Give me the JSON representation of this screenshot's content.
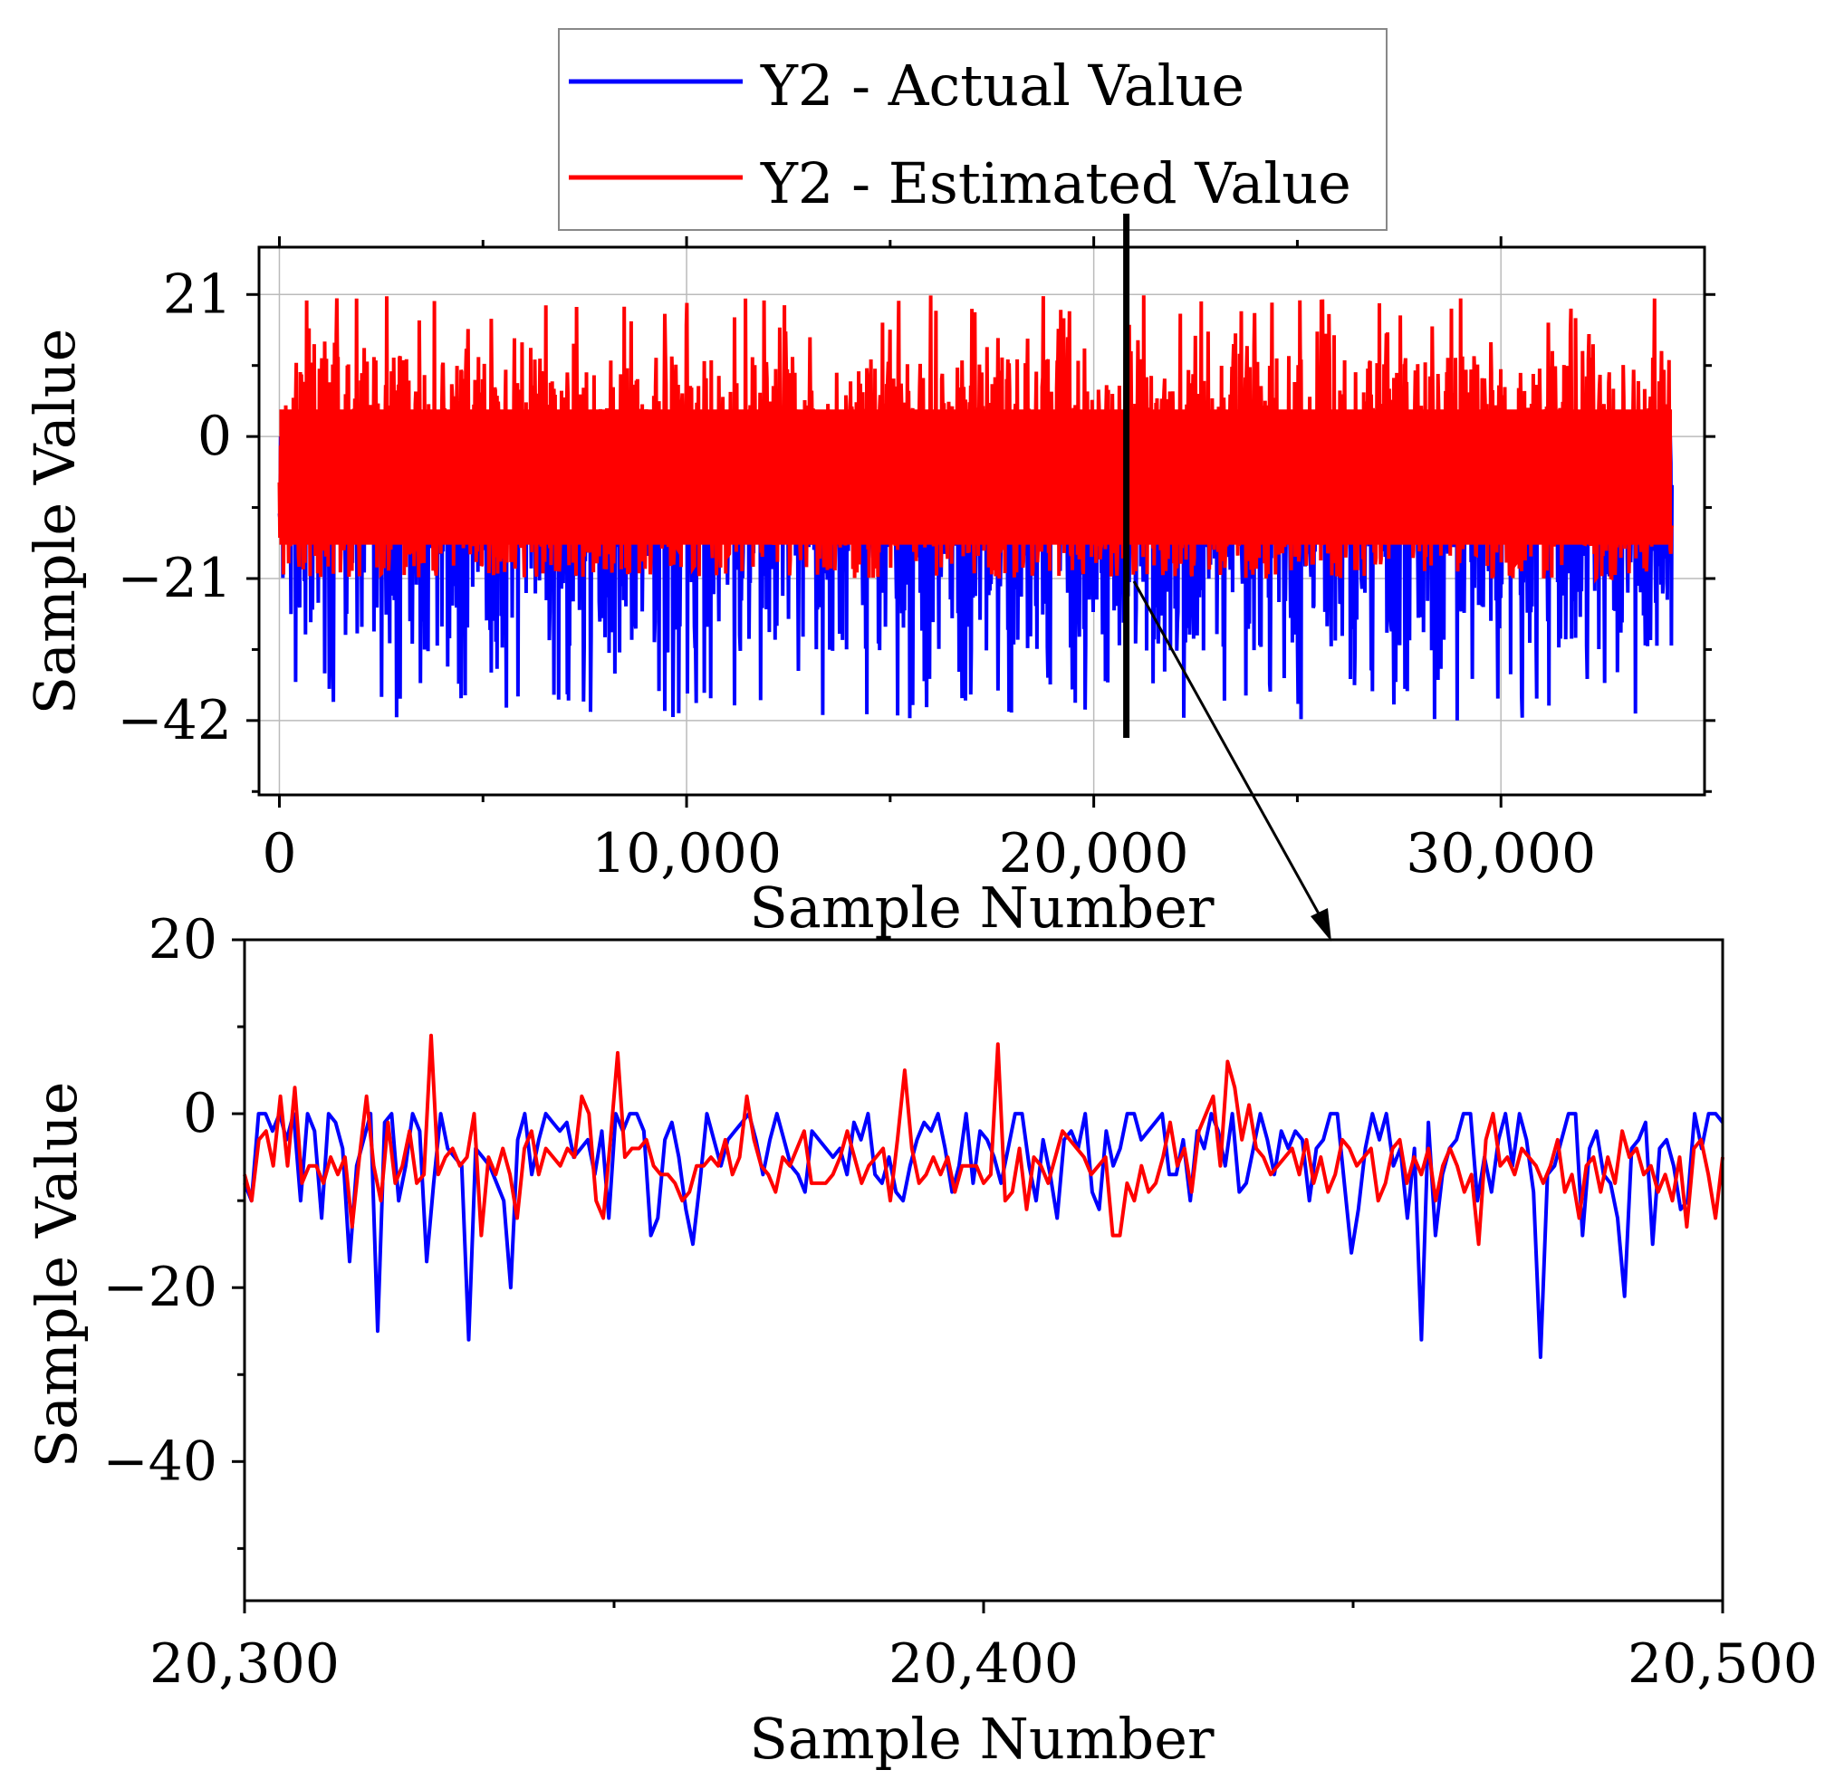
{
  "colors": {
    "actual": "#0000ff",
    "estimated": "#ff0000",
    "axis": "#000000",
    "grid": "#bbbbbb"
  },
  "legend": {
    "items": [
      {
        "label": "Y2 - Actual Value",
        "color": "#0000ff"
      },
      {
        "label": "Y2 - Estimated Value",
        "color": "#ff0000"
      }
    ]
  },
  "chart_data": [
    {
      "type": "line",
      "xlabel": "Sample Number",
      "ylabel": "Sample Value",
      "xlim": [
        -500,
        35000
      ],
      "ylim": [
        -53,
        28
      ],
      "xticks": [
        0,
        10000,
        20000,
        30000
      ],
      "xtick_labels": [
        "0",
        "10,000",
        "20,000",
        "30,000"
      ],
      "yticks": [
        21,
        0,
        -21,
        -42
      ],
      "ytick_labels": [
        "21",
        "0",
        "−21",
        "−42"
      ],
      "grid": true,
      "marker_x": 20800,
      "n_samples": 34200,
      "series": [
        {
          "name": "Y2 - Actual Value",
          "range": [
            -42,
            0
          ]
        },
        {
          "name": "Y2 - Estimated Value",
          "range": [
            -21,
            21
          ]
        }
      ]
    },
    {
      "type": "line",
      "xlabel": "Sample Number",
      "ylabel": "Sample Value",
      "xlim": [
        20300,
        20500
      ],
      "ylim": [
        -56,
        20
      ],
      "xticks": [
        20300,
        20400,
        20500
      ],
      "xtick_labels": [
        "20,300",
        "20,400",
        "20,500"
      ],
      "yticks": [
        20,
        0,
        -20,
        -40
      ],
      "ytick_labels": [
        "20",
        "0",
        "−20",
        "−40"
      ],
      "grid": false,
      "x_start": 20300,
      "x_step": 1,
      "series": [
        {
          "name": "Y2 - Actual Value",
          "values": [
            -8,
            -10,
            0,
            0,
            -2,
            0,
            -3,
            0,
            -10,
            0,
            -2,
            -12,
            0,
            -1,
            -4,
            -17,
            -6,
            -3,
            0,
            -25,
            -1,
            0,
            -10,
            -6,
            0,
            -2,
            -17,
            -8,
            0,
            -4,
            -5,
            -6,
            -26,
            -4,
            -5,
            -6,
            -8,
            -10,
            -20,
            -3,
            0,
            -7,
            -3,
            0,
            -1,
            -2,
            -1,
            -5,
            -4,
            -3,
            -7,
            -2,
            -12,
            0,
            -2,
            0,
            0,
            -2,
            -14,
            -12,
            -3,
            -1,
            -5,
            -11,
            -15,
            -8,
            0,
            -3,
            -6,
            -3,
            -2,
            -1,
            0,
            -3,
            -7,
            -3,
            0,
            -3,
            -6,
            -7,
            -9,
            -2,
            -3,
            -4,
            -5,
            -4,
            -7,
            -1,
            -3,
            0,
            -7,
            -8,
            -5,
            -9,
            -10,
            -6,
            -3,
            -1,
            -2,
            0,
            -4,
            -9,
            -6,
            0,
            -8,
            -2,
            -3,
            -5,
            -8,
            -4,
            0,
            0,
            -6,
            -10,
            -3,
            -7,
            -12,
            -3,
            -2,
            -4,
            0,
            -9,
            -11,
            -2,
            -6,
            -4,
            0,
            0,
            -3,
            -2,
            -1,
            0,
            -7,
            -7,
            -3,
            -10,
            -2,
            -4,
            0,
            -2,
            -6,
            0,
            -9,
            -8,
            -4,
            0,
            -3,
            -7,
            -2,
            -4,
            -2,
            -3,
            -10,
            -4,
            -3,
            0,
            0,
            -8,
            -16,
            -11,
            -4,
            0,
            -3,
            0,
            -6,
            -4,
            -12,
            -4,
            -26,
            -1,
            -14,
            -7,
            -4,
            -3,
            0,
            0,
            -10,
            -5,
            -9,
            -3,
            0,
            -6,
            0,
            -3,
            -9,
            -28,
            -7,
            -6,
            -3,
            0,
            0,
            -14,
            -4,
            -2,
            -7,
            -8,
            -12,
            -21,
            -4,
            -3,
            -1,
            -15,
            -4,
            -3,
            -6,
            -11,
            -10,
            0,
            -4,
            0,
            0,
            -1
          ],
          "note": ""
        },
        {
          "name": "Y2 - Estimated Value",
          "values": [
            -7,
            -10,
            -3,
            -2,
            -6,
            2,
            -6,
            3,
            -8,
            -6,
            -6,
            -8,
            -5,
            -7,
            -5,
            -13,
            -5,
            2,
            -6,
            -10,
            -1,
            -8,
            -6,
            -2,
            -8,
            -7,
            9,
            -7,
            -5,
            -4,
            -6,
            -5,
            0,
            -14,
            -5,
            -7,
            -4,
            -7,
            -12,
            -4,
            -2,
            -7,
            -4,
            -5,
            -6,
            -4,
            -5,
            2,
            0,
            -10,
            -12,
            -3,
            7,
            -5,
            -4,
            -4,
            -3,
            -6,
            -7,
            -7,
            -8,
            -10,
            -9,
            -6,
            -6,
            -5,
            -6,
            -3,
            -7,
            -5,
            2,
            -3,
            -6,
            -7,
            -9,
            -5,
            -6,
            -4,
            -2,
            -8,
            -8,
            -8,
            -7,
            -5,
            -2,
            -5,
            -8,
            -6,
            -5,
            -4,
            -10,
            -3,
            5,
            -4,
            -8,
            -7,
            -5,
            -7,
            -5,
            -9,
            -6,
            -6,
            -6,
            -8,
            -7,
            8,
            -10,
            -9,
            -4,
            -11,
            -5,
            -6,
            -8,
            -5,
            -2,
            -3,
            -4,
            -5,
            -7,
            -6,
            -5,
            -14,
            -14,
            -8,
            -10,
            -6,
            -9,
            -8,
            -5,
            -1,
            -6,
            -4,
            -9,
            -2,
            0,
            2,
            -6,
            6,
            3,
            -3,
            1,
            -4,
            -5,
            -7,
            -6,
            -5,
            -4,
            -7,
            -3,
            -8,
            -5,
            -9,
            -7,
            -3,
            -4,
            -6,
            -5,
            -4,
            -10,
            -8,
            -4,
            -3,
            -8,
            -5,
            -7,
            -4,
            -10,
            -6,
            -4,
            -6,
            -9,
            -7,
            -15,
            -3,
            0,
            -6,
            -5,
            -7,
            -4,
            -5,
            -6,
            -8,
            -6,
            -3,
            -9,
            -7,
            -12,
            -6,
            -5,
            -9,
            -5,
            -8,
            -2,
            -5,
            -4,
            -7,
            -6,
            -9,
            -7,
            -10,
            -5,
            -13,
            -4,
            -3,
            -7,
            -12,
            -5
          ]
        }
      ]
    }
  ]
}
